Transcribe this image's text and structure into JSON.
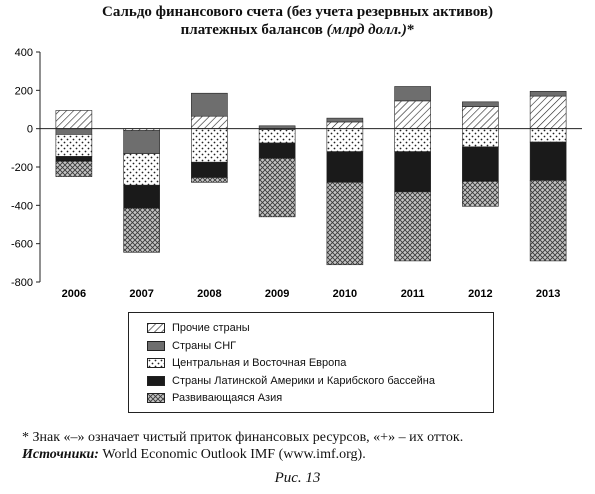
{
  "title": {
    "line1": "Сальдо финансового счета (без учета резервных активов)",
    "line2_main": "платежных балансов",
    "line2_unit": "(млрд долл.)",
    "line2_mark": "*"
  },
  "chart_data": {
    "type": "bar",
    "stacked": true,
    "categories": [
      "2006",
      "2007",
      "2008",
      "2009",
      "2010",
      "2011",
      "2012",
      "2013"
    ],
    "ylim": [
      -800,
      400
    ],
    "yticks": [
      400,
      200,
      0,
      -200,
      -400,
      -600,
      -800
    ],
    "grid": false,
    "legend_position": "bottom",
    "series": [
      {
        "name": "Прочие страны",
        "pattern": "diagonal-hatch",
        "values": [
          95,
          -10,
          65,
          -5,
          35,
          145,
          115,
          170
        ]
      },
      {
        "name": "Страны СНГ",
        "pattern": "solid-gray",
        "values": [
          -30,
          -120,
          120,
          15,
          20,
          75,
          25,
          25
        ]
      },
      {
        "name": "Центральная и Восточная Европа",
        "pattern": "dots",
        "values": [
          -115,
          -165,
          -175,
          -70,
          -120,
          -120,
          -95,
          -70
        ]
      },
      {
        "name": "Страны Латинской Америки и Карибского бассейна",
        "pattern": "solid-black",
        "values": [
          -25,
          -120,
          -80,
          -80,
          -160,
          -210,
          -180,
          -200
        ]
      },
      {
        "name": "Развивающаяся Азия",
        "pattern": "crosshatch",
        "values": [
          -80,
          -230,
          -25,
          -305,
          -430,
          -360,
          -130,
          -420
        ]
      }
    ],
    "colors": {
      "prochie": "#ffffff",
      "sng": "#6e6e6e",
      "ceur": "#ffffff",
      "latam": "#1a1a1a",
      "asia": "#bdbdbd",
      "axis": "#222222"
    }
  },
  "legend": {
    "items": [
      {
        "label": "Прочие страны",
        "pattern": "diagonal-hatch"
      },
      {
        "label": "Страны СНГ",
        "pattern": "solid-gray"
      },
      {
        "label": "Центральная и Восточная Европа",
        "pattern": "dots"
      },
      {
        "label": "Страны Латинской Америки и Карибского бассейна",
        "pattern": "solid-black"
      },
      {
        "label": "Развивающаяся Азия",
        "pattern": "crosshatch"
      }
    ]
  },
  "footnote": "* Знак «–» означает чистый приток финансовых ресурсов, «+» – их отток.",
  "sources": {
    "label": "Источники:",
    "text": "World Economic Outlook    IMF (www.imf.org)."
  },
  "caption": "Рис. 13"
}
